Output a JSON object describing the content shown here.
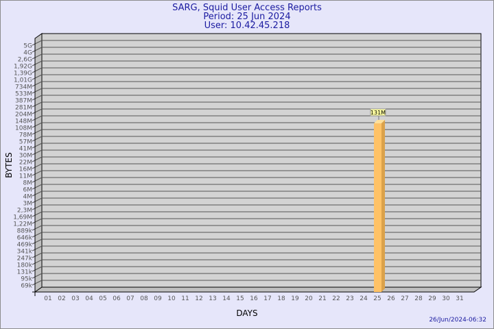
{
  "title": "SARG, Squid User Access Reports",
  "period": "Period: 25 Jun 2024",
  "user": "User: 10.42.45.218",
  "footer": "26/Jun/2024-06:32",
  "colors": {
    "background": "#e6e6fa",
    "plot": "#d3d3d3",
    "bar": "#ffc266",
    "bar_side": "#dba24a",
    "title": "#1a1aa0"
  },
  "chart_data": {
    "type": "bar",
    "xlabel": "DAYS",
    "ylabel": "BYTES",
    "yscale": "log",
    "categories": [
      "01",
      "02",
      "03",
      "04",
      "05",
      "06",
      "07",
      "08",
      "09",
      "10",
      "11",
      "12",
      "13",
      "14",
      "15",
      "16",
      "17",
      "18",
      "19",
      "20",
      "21",
      "22",
      "23",
      "24",
      "25",
      "26",
      "27",
      "28",
      "29",
      "30",
      "31"
    ],
    "ytick_labels": [
      "5G",
      "4G",
      "2,6G",
      "1,92G",
      "1,39G",
      "1,01G",
      "734M",
      "533M",
      "387M",
      "281M",
      "204M",
      "148M",
      "108M",
      "78M",
      "57M",
      "41M",
      "30M",
      "22M",
      "16M",
      "11M",
      "8M",
      "6M",
      "4M",
      "3M",
      "2,3M",
      "1,69M",
      "1,22M",
      "889k",
      "646k",
      "469k",
      "341k",
      "247k",
      "180k",
      "131k",
      "95k",
      "69k"
    ],
    "bars": [
      {
        "category": "25",
        "value": 131000000,
        "label": "131M"
      }
    ],
    "grid": true
  }
}
